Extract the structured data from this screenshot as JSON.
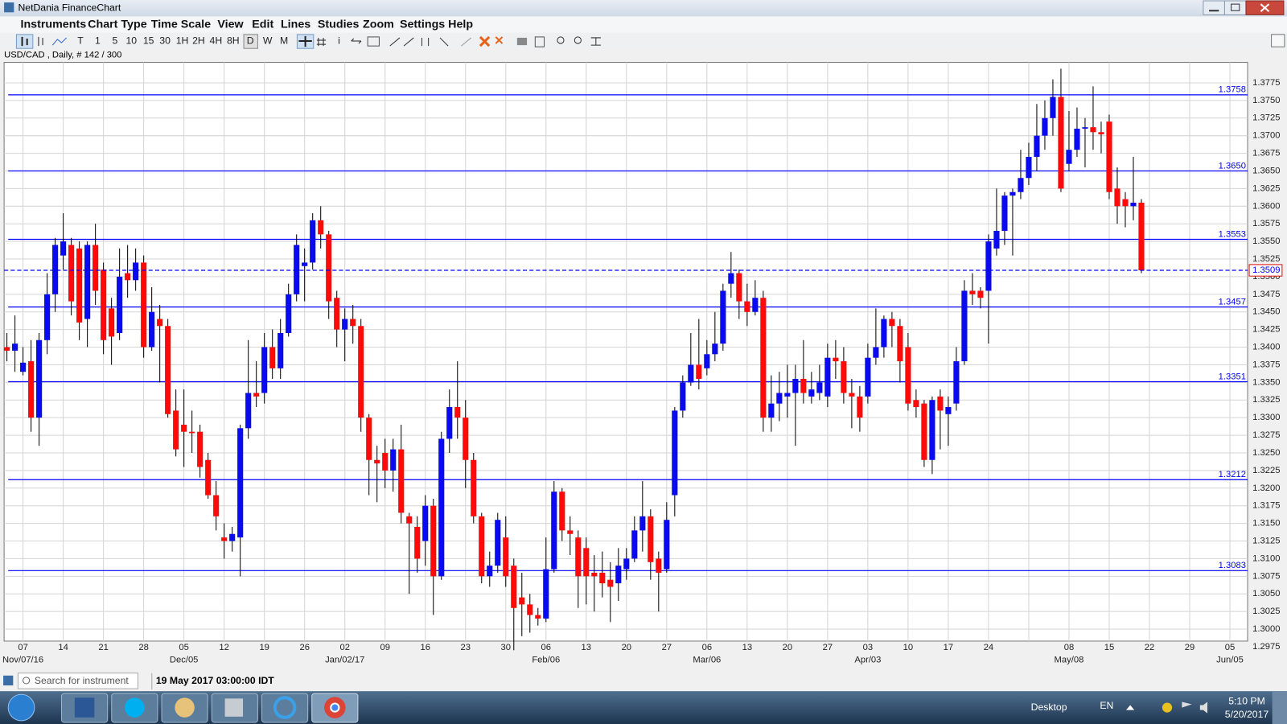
{
  "window": {
    "title": "NetDania FinanceChart",
    "menu": [
      "Instruments",
      "Chart Type",
      "Time Scale",
      "View",
      "Edit",
      "Lines",
      "Studies",
      "Zoom",
      "Settings",
      "Help"
    ],
    "toolbar_buttons": [
      "T",
      "1",
      "5",
      "10",
      "15",
      "30",
      "1H",
      "2H",
      "4H",
      "8H",
      "D",
      "W",
      "M",
      "i"
    ]
  },
  "chart_data": {
    "type": "candlestick",
    "title": "USD/CAD , Daily, # 142 / 300",
    "up_color": "#0a0af0",
    "down_color": "#ff0a0a",
    "level_color": "#0000ff",
    "grid": true,
    "xlim": [
      -0.35,
      154.2
    ],
    "ylim": [
      1.2983,
      1.3804
    ],
    "yticks": [
      1.2975,
      {
        "value": 1.3,
        "label": "1.3000"
      },
      1.3025,
      {
        "value": 1.305,
        "label": "1.3050"
      },
      1.3075,
      {
        "value": 1.31,
        "label": "1.3100"
      },
      1.3125,
      {
        "value": 1.315,
        "label": "1.3150"
      },
      1.3175,
      {
        "value": 1.32,
        "label": "1.3200"
      },
      1.3225,
      {
        "value": 1.325,
        "label": "1.3250"
      },
      1.3275,
      {
        "value": 1.33,
        "label": "1.3300"
      },
      1.3325,
      {
        "value": 1.335,
        "label": "1.3350"
      },
      1.3375,
      {
        "value": 1.34,
        "label": "1.3400"
      },
      1.3425,
      {
        "value": 1.345,
        "label": "1.3450"
      },
      1.3475,
      {
        "value": 1.35,
        "label": "1.3500"
      },
      1.3525,
      {
        "value": 1.355,
        "label": "1.3550"
      },
      1.3575,
      {
        "value": 1.36,
        "label": "1.3600"
      },
      1.3625,
      {
        "value": 1.365,
        "label": "1.3650"
      },
      1.3675,
      {
        "value": 1.37,
        "label": "1.3700"
      },
      1.3725,
      {
        "value": 1.375,
        "label": "1.3750"
      },
      1.3775
    ],
    "xticks": [
      {
        "value": 2,
        "label": "07"
      },
      {
        "value": 7,
        "label": "14"
      },
      {
        "value": 12,
        "label": "21"
      },
      {
        "value": 17,
        "label": "28"
      },
      {
        "value": 22,
        "label": "05"
      },
      {
        "value": 27,
        "label": "12"
      },
      {
        "value": 32,
        "label": "19"
      },
      {
        "value": 37,
        "label": "26"
      },
      {
        "value": 42,
        "label": "02"
      },
      {
        "value": 47,
        "label": "09"
      },
      {
        "value": 52,
        "label": "16"
      },
      {
        "value": 57,
        "label": "23"
      },
      {
        "value": 62,
        "label": "30"
      },
      {
        "value": 67,
        "label": "06"
      },
      {
        "value": 72,
        "label": "13"
      },
      {
        "value": 77,
        "label": "20"
      },
      {
        "value": 82,
        "label": "27"
      },
      {
        "value": 87,
        "label": "06"
      },
      {
        "value": 92,
        "label": "13"
      },
      {
        "value": 97,
        "label": "20"
      },
      {
        "value": 102,
        "label": "27"
      },
      {
        "value": 107,
        "label": "03"
      },
      {
        "value": 112,
        "label": "10"
      },
      {
        "value": 117,
        "label": "17"
      },
      {
        "value": 122,
        "label": "24"
      },
      {
        "value": 127,
        "label": null
      },
      {
        "value": 132,
        "label": "08"
      },
      {
        "value": 137,
        "label": "15"
      },
      {
        "value": 142,
        "label": "22"
      },
      {
        "value": 147,
        "label": "29"
      },
      {
        "value": 152,
        "label": "05"
      }
    ],
    "x_month_labels": [
      {
        "value": 2,
        "label": "Nov/07/16"
      },
      {
        "value": 22,
        "label": "Dec/05"
      },
      {
        "value": 42,
        "label": "Jan/02/17"
      },
      {
        "value": 67,
        "label": "Feb/06"
      },
      {
        "value": 87,
        "label": "Mar/06"
      },
      {
        "value": 107,
        "label": "Apr/03"
      },
      {
        "value": 132,
        "label": "May/08"
      },
      {
        "value": 152,
        "label": "Jun/05"
      }
    ],
    "levels": [
      {
        "value": 1.3758,
        "label": "1.3758"
      },
      {
        "value": 1.365,
        "label": "1.3650"
      },
      {
        "value": 1.3553,
        "label": "1.3553"
      },
      {
        "value": 1.3457,
        "label": "1.3457"
      },
      {
        "value": 1.3351,
        "label": "1.3351"
      },
      {
        "value": 1.3212,
        "label": "1.3212"
      },
      {
        "value": 1.3083,
        "label": "1.3083"
      }
    ],
    "current_price": {
      "value": 1.3509,
      "label": "1.3509"
    },
    "open": [
      1.34,
      1.3395,
      1.3365,
      1.338,
      1.33,
      1.341,
      1.3475,
      1.353,
      1.3545,
      1.354,
      1.344,
      1.3545,
      1.351,
      1.3455,
      1.342,
      1.3505,
      1.3495,
      1.352,
      1.34,
      1.344,
      1.343,
      1.331,
      1.329,
      1.328,
      1.328,
      1.324,
      1.319,
      1.313,
      1.3125,
      1.313,
      1.3285,
      1.3335,
      1.3335,
      1.34,
      1.337,
      1.342,
      1.3475,
      1.3515,
      1.352,
      1.358,
      1.356,
      1.347,
      1.3425,
      1.344,
      1.343,
      1.33,
      1.324,
      1.325,
      1.3225,
      1.3255,
      1.316,
      1.3145,
      1.3125,
      1.3175,
      1.3075,
      1.327,
      1.3315,
      1.33,
      1.324,
      1.316,
      1.3075,
      1.309,
      1.313,
      1.309,
      1.3045,
      1.3035,
      1.302,
      1.3015,
      1.3085,
      1.3195,
      1.314,
      1.313,
      1.3115,
      1.308,
      1.308,
      1.307,
      1.3065,
      1.3085,
      1.31,
      1.314,
      1.316,
      1.31,
      1.3085,
      1.319,
      1.331,
      1.335,
      1.3375,
      1.337,
      1.339,
      1.3405,
      1.349,
      1.3505,
      1.3465,
      1.345,
      1.347,
      1.33,
      1.332,
      1.333,
      1.3335,
      1.3355,
      1.333,
      1.3335,
      1.333,
      1.3385,
      1.338,
      1.3335,
      1.333,
      1.333,
      1.3385,
      1.34,
      1.344,
      1.343,
      1.34,
      1.3325,
      1.332,
      1.324,
      1.333,
      1.3305,
      1.332,
      1.338,
      1.348,
      1.348,
      1.348,
      1.354,
      1.3565,
      1.3615,
      1.362,
      1.364,
      1.367,
      1.37,
      1.3725,
      1.3755,
      1.366,
      1.368,
      1.371,
      1.3712,
      1.3705,
      1.372,
      1.3625,
      1.361,
      1.36,
      1.3605
    ],
    "high": [
      1.342,
      1.3445,
      1.34,
      1.341,
      1.342,
      1.3505,
      1.3555,
      1.359,
      1.3555,
      1.355,
      1.355,
      1.3575,
      1.352,
      1.347,
      1.354,
      1.3545,
      1.354,
      1.353,
      1.3485,
      1.346,
      1.344,
      1.334,
      1.334,
      1.331,
      1.329,
      1.325,
      1.321,
      1.315,
      1.3145,
      1.329,
      1.341,
      1.338,
      1.342,
      1.3425,
      1.344,
      1.349,
      1.356,
      1.354,
      1.359,
      1.36,
      1.3565,
      1.348,
      1.3455,
      1.346,
      1.344,
      1.3305,
      1.326,
      1.327,
      1.327,
      1.329,
      1.3165,
      1.316,
      1.319,
      1.3185,
      1.328,
      1.334,
      1.338,
      1.3325,
      1.325,
      1.3165,
      1.311,
      1.3165,
      1.316,
      1.31,
      1.308,
      1.305,
      1.303,
      1.313,
      1.321,
      1.32,
      1.316,
      1.314,
      1.313,
      1.3105,
      1.311,
      1.3095,
      1.3115,
      1.3115,
      1.316,
      1.321,
      1.317,
      1.311,
      1.318,
      1.3315,
      1.336,
      1.342,
      1.344,
      1.341,
      1.345,
      1.349,
      1.3535,
      1.351,
      1.349,
      1.3495,
      1.348,
      1.336,
      1.3365,
      1.3375,
      1.3375,
      1.341,
      1.3365,
      1.3375,
      1.3405,
      1.341,
      1.34,
      1.3355,
      1.3345,
      1.3405,
      1.3455,
      1.3445,
      1.345,
      1.344,
      1.342,
      1.334,
      1.3325,
      1.333,
      1.334,
      1.333,
      1.34,
      1.3495,
      1.3505,
      1.3485,
      1.356,
      1.3625,
      1.362,
      1.3625,
      1.368,
      1.369,
      1.3745,
      1.375,
      1.378,
      1.3795,
      1.3735,
      1.374,
      1.3725,
      1.377,
      1.372,
      1.373,
      1.3655,
      1.362,
      1.367,
      1.361
    ],
    "low": [
      1.338,
      1.3365,
      1.336,
      1.328,
      1.326,
      1.339,
      1.345,
      1.351,
      1.3445,
      1.341,
      1.34,
      1.346,
      1.339,
      1.3375,
      1.341,
      1.347,
      1.348,
      1.3385,
      1.3395,
      1.335,
      1.33,
      1.3245,
      1.323,
      1.325,
      1.3215,
      1.3185,
      1.314,
      1.31,
      1.311,
      1.3075,
      1.327,
      1.3315,
      1.332,
      1.3355,
      1.3355,
      1.3415,
      1.3465,
      1.3465,
      1.351,
      1.354,
      1.344,
      1.34,
      1.338,
      1.3405,
      1.328,
      1.319,
      1.318,
      1.32,
      1.3195,
      1.315,
      1.305,
      1.308,
      1.309,
      1.302,
      1.307,
      1.325,
      1.327,
      1.32,
      1.315,
      1.3065,
      1.306,
      1.308,
      1.306,
      1.297,
      1.299,
      1.2995,
      1.3005,
      1.301,
      1.308,
      1.3125,
      1.3105,
      1.303,
      1.3035,
      1.3025,
      1.3045,
      1.301,
      1.304,
      1.307,
      1.3095,
      1.311,
      1.307,
      1.3025,
      1.308,
      1.316,
      1.33,
      1.3345,
      1.334,
      1.336,
      1.338,
      1.3395,
      1.347,
      1.344,
      1.343,
      1.3445,
      1.328,
      1.328,
      1.3295,
      1.33,
      1.326,
      1.332,
      1.332,
      1.3325,
      1.3315,
      1.3355,
      1.332,
      1.3285,
      1.328,
      1.332,
      1.3375,
      1.3385,
      1.34,
      1.335,
      1.331,
      1.33,
      1.323,
      1.322,
      1.3255,
      1.326,
      1.331,
      1.3375,
      1.346,
      1.3455,
      1.3405,
      1.353,
      1.3545,
      1.353,
      1.361,
      1.363,
      1.365,
      1.368,
      1.37,
      1.362,
      1.365,
      1.367,
      1.3655,
      1.368,
      1.3675,
      1.361,
      1.3575,
      1.357,
      1.358,
      1.3505
    ],
    "close": [
      1.3395,
      1.3405,
      1.3378,
      1.33,
      1.341,
      1.3475,
      1.3545,
      1.355,
      1.3465,
      1.3435,
      1.3545,
      1.348,
      1.341,
      1.3415,
      1.35,
      1.3495,
      1.352,
      1.34,
      1.345,
      1.343,
      1.3305,
      1.3255,
      1.328,
      1.3278,
      1.323,
      1.319,
      1.316,
      1.3125,
      1.3135,
      1.3285,
      1.3335,
      1.333,
      1.34,
      1.337,
      1.342,
      1.3475,
      1.3545,
      1.352,
      1.358,
      1.356,
      1.3465,
      1.3425,
      1.344,
      1.343,
      1.33,
      1.324,
      1.3235,
      1.3225,
      1.3255,
      1.3165,
      1.315,
      1.31,
      1.3175,
      1.3075,
      1.327,
      1.3315,
      1.33,
      1.324,
      1.316,
      1.3075,
      1.309,
      1.3155,
      1.3075,
      1.303,
      1.3035,
      1.302,
      1.3015,
      1.3085,
      1.3195,
      1.314,
      1.3135,
      1.3075,
      1.3075,
      1.3075,
      1.3065,
      1.306,
      1.309,
      1.31,
      1.314,
      1.316,
      1.3095,
      1.308,
      1.3155,
      1.331,
      1.335,
      1.3375,
      1.3355,
      1.339,
      1.3405,
      1.348,
      1.3505,
      1.3465,
      1.345,
      1.347,
      1.33,
      1.332,
      1.3335,
      1.3335,
      1.3355,
      1.3335,
      1.334,
      1.335,
      1.3385,
      1.338,
      1.3335,
      1.333,
      1.33,
      1.3385,
      1.34,
      1.344,
      1.343,
      1.338,
      1.332,
      1.3315,
      1.324,
      1.3325,
      1.331,
      1.3315,
      1.338,
      1.348,
      1.3475,
      1.347,
      1.355,
      1.3565,
      1.3615,
      1.362,
      1.364,
      1.367,
      1.37,
      1.3725,
      1.3755,
      1.3625,
      1.368,
      1.371,
      1.3712,
      1.3705,
      1.3702,
      1.362,
      1.36,
      1.36,
      1.3605,
      1.3509
    ]
  },
  "status_bar": {
    "search_placeholder": "Search for instrument",
    "timestamp": "19 May 2017 03:00:00 IDT"
  },
  "taskbar": {
    "desktop": "Desktop",
    "language": "EN",
    "time": "5:10 PM",
    "date": "5/20/2017"
  }
}
